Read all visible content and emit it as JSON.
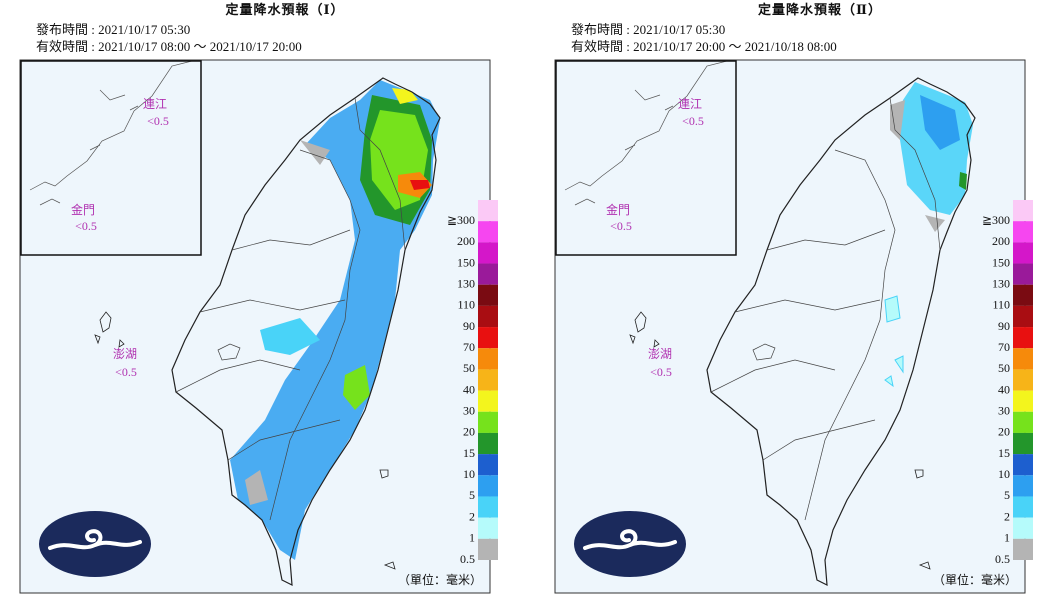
{
  "panels": [
    {
      "title": "定量降水預報（Ⅰ）",
      "issued": "發布時間 : 2021/10/17 05:30",
      "valid": "有效時間 : 2021/10/17 08:00 ～ 2021/10/17 20:00",
      "islands": [
        {
          "name": "連江",
          "value": "<0.5"
        },
        {
          "name": "金門",
          "value": "<0.5"
        },
        {
          "name": "澎湖",
          "value": "<0.5"
        }
      ],
      "unit": "（單位：毫米）"
    },
    {
      "title": "定量降水預報（Ⅱ）",
      "issued": "發布時間 : 2021/10/17 05:30",
      "valid": "有效時間 : 2021/10/17 20:00 ～ 2021/10/18 08:00",
      "islands": [
        {
          "name": "連江",
          "value": "<0.5"
        },
        {
          "name": "金門",
          "value": "<0.5"
        },
        {
          "name": "澎湖",
          "value": "<0.5"
        }
      ],
      "unit": "（單位：毫米）"
    }
  ],
  "legend": {
    "labels": [
      "≧300",
      "200",
      "150",
      "130",
      "110",
      "90",
      "70",
      "50",
      "40",
      "30",
      "20",
      "15",
      "10",
      "5",
      "2",
      "1",
      "0.5"
    ],
    "colors": [
      "#fbc9f6",
      "#f646f0",
      "#d417c9",
      "#9a1a9a",
      "#7a0b12",
      "#a90d12",
      "#e81010",
      "#f68a0b",
      "#f7b418",
      "#f3f51d",
      "#76e21c",
      "#23962b",
      "#1d5fcf",
      "#2d9ff0",
      "#49d3f8",
      "#b5fbfb",
      "#b4b4b4"
    ]
  }
}
